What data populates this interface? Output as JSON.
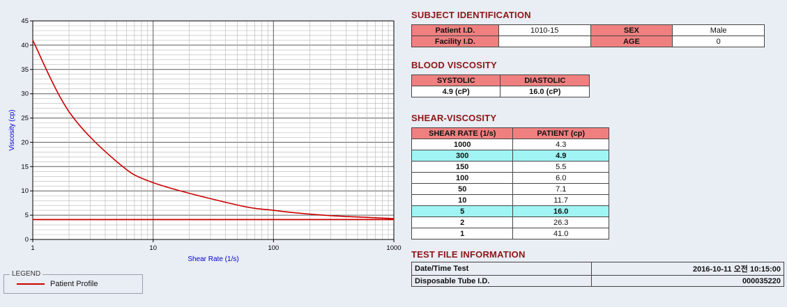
{
  "colors": {
    "bg": "#e9edf4",
    "heading": "#8c1616",
    "pink": "#f08080",
    "cyan": "#a0f4f4",
    "red": "#cc0000",
    "blue": "#0000cc"
  },
  "chart_data": {
    "type": "line",
    "x_scale": "log",
    "xlabel": "Shear Rate (1/s)",
    "ylabel": "Viscosity (cp)",
    "xlim": [
      1,
      1000
    ],
    "ylim": [
      0,
      45
    ],
    "xticks": [
      1,
      10,
      100,
      1000
    ],
    "yticks": [
      0,
      5,
      10,
      15,
      20,
      25,
      30,
      35,
      40,
      45
    ],
    "y_minor_step": 1,
    "y_major_step": 5,
    "grid": true,
    "series": [
      {
        "name": "Patient Profile",
        "color": "#cc0000",
        "x": [
          1,
          2,
          5,
          10,
          50,
          100,
          150,
          300,
          1000
        ],
        "y": [
          41.0,
          26.3,
          16.0,
          11.7,
          7.1,
          6.0,
          5.5,
          4.9,
          4.3
        ]
      }
    ],
    "baseline": {
      "name": "reference-line",
      "color": "#cc0000",
      "y": 4.1
    },
    "legend_position": "bottom-left-outside"
  },
  "legend": {
    "title": "LEGEND",
    "entries": [
      {
        "label": "Patient Profile",
        "color": "#cc0000"
      }
    ]
  },
  "subject_identification": {
    "title": "SUBJECT IDENTIFICATION",
    "rows": [
      {
        "label1": "Patient I.D.",
        "value1": "1010-15",
        "label2": "SEX",
        "value2": "Male"
      },
      {
        "label1": "Facility I.D.",
        "value1": "",
        "label2": "AGE",
        "value2": "0"
      }
    ]
  },
  "blood_viscosity": {
    "title": "BLOOD VISCOSITY",
    "headers": [
      "SYSTOLIC",
      "DIASTOLIC"
    ],
    "values": [
      "4.9 (cP)",
      "16.0 (cP)"
    ]
  },
  "shear_viscosity": {
    "title": "SHEAR-VISCOSITY",
    "headers": [
      "SHEAR RATE (1/s)",
      "PATIENT (cp)"
    ],
    "rows": [
      {
        "rate": "1000",
        "value": "4.3",
        "highlight": false
      },
      {
        "rate": "300",
        "value": "4.9",
        "highlight": true
      },
      {
        "rate": "150",
        "value": "5.5",
        "highlight": false
      },
      {
        "rate": "100",
        "value": "6.0",
        "highlight": false
      },
      {
        "rate": "50",
        "value": "7.1",
        "highlight": false
      },
      {
        "rate": "10",
        "value": "11.7",
        "highlight": false
      },
      {
        "rate": "5",
        "value": "16.0",
        "highlight": true
      },
      {
        "rate": "2",
        "value": "26.3",
        "highlight": false
      },
      {
        "rate": "1",
        "value": "41.0",
        "highlight": false
      }
    ]
  },
  "test_file_information": {
    "title": "TEST FILE INFORMATION",
    "rows": [
      {
        "label": "Date/Time Test",
        "value": "2016-10-11  오전 10:15:00"
      },
      {
        "label": "Disposable Tube I.D.",
        "value": "000035220"
      }
    ]
  }
}
